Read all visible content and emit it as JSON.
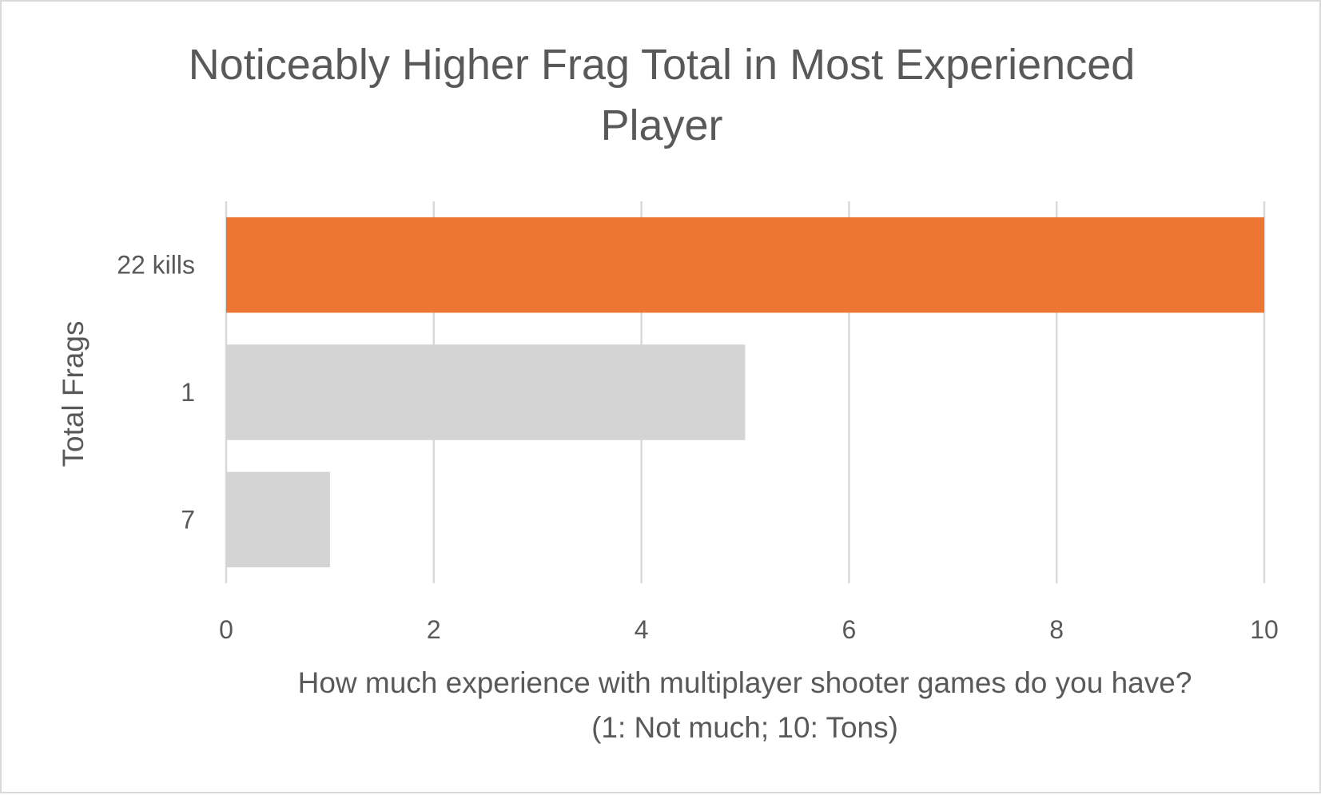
{
  "chart_data": {
    "type": "bar",
    "orientation": "horizontal",
    "title_lines": [
      "Noticeably Higher Frag Total in Most Experienced",
      "Player"
    ],
    "xlabel_lines": [
      "How much experience with multiplayer shooter games do you have?",
      "(1: Not much; 10: Tons)"
    ],
    "ylabel": "Total Frags",
    "categories": [
      "22 kills",
      "1",
      "7"
    ],
    "values": [
      10,
      5,
      1
    ],
    "xlim": [
      0,
      10
    ],
    "xticks": [
      0,
      2,
      4,
      6,
      8,
      10
    ],
    "grid": "vertical",
    "legend": "none",
    "colors": {
      "highlight": "#ed7632",
      "default": "#d4d4d4",
      "grid": "#d9d9d9",
      "text": "#595959",
      "border": "#d9d9d9"
    },
    "highlight_index": 0
  }
}
